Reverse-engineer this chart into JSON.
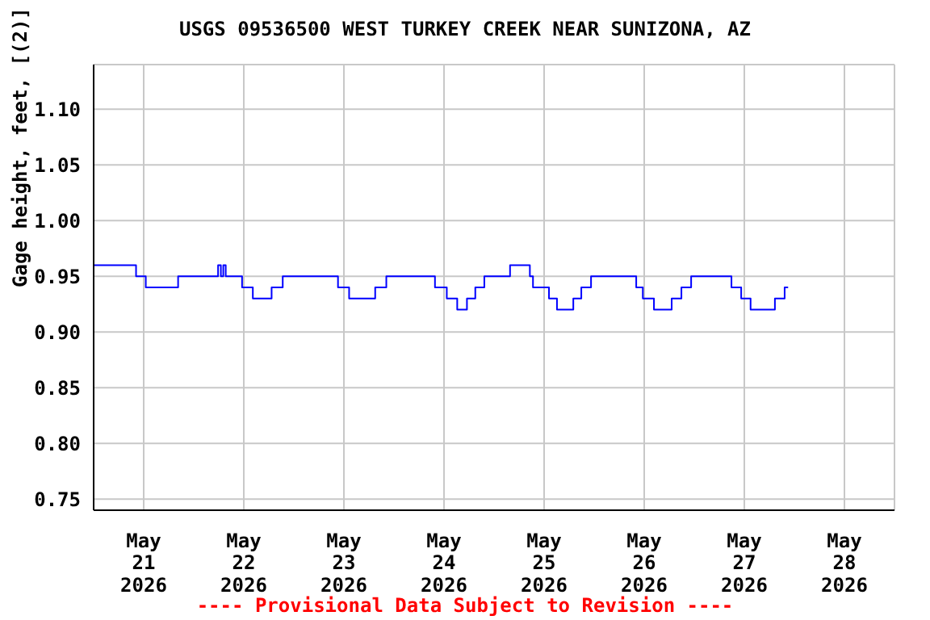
{
  "chart_data": {
    "type": "step",
    "title": "USGS 09536500 WEST TURKEY CREEK NEAR SUNIZONA, AZ",
    "ylabel": "Gage height, feet, [(2)]",
    "annotations": [
      "---- Provisional Data Subject to Revision ----"
    ],
    "x": [
      "2026-05-20T12:00",
      "2026-05-20T22:10",
      "2026-05-21T00:30",
      "2026-05-21T08:15",
      "2026-05-21T17:50",
      "2026-05-21T18:30",
      "2026-05-21T19:05",
      "2026-05-21T19:40",
      "2026-05-21T23:35",
      "2026-05-22T02:10",
      "2026-05-22T06:40",
      "2026-05-22T09:20",
      "2026-05-22T22:35",
      "2026-05-23T01:15",
      "2026-05-23T07:30",
      "2026-05-23T10:10",
      "2026-05-23T21:50",
      "2026-05-24T00:40",
      "2026-05-24T03:10",
      "2026-05-24T05:30",
      "2026-05-24T07:30",
      "2026-05-24T09:40",
      "2026-05-24T15:50",
      "2026-05-24T20:35",
      "2026-05-24T21:20",
      "2026-05-25T01:10",
      "2026-05-25T03:05",
      "2026-05-25T07:00",
      "2026-05-25T08:55",
      "2026-05-25T11:15",
      "2026-05-25T22:05",
      "2026-05-25T23:40",
      "2026-05-26T02:20",
      "2026-05-26T06:35",
      "2026-05-26T08:55",
      "2026-05-26T11:15",
      "2026-05-26T20:55",
      "2026-05-26T23:15",
      "2026-05-27T01:30",
      "2026-05-27T07:20",
      "2026-05-27T09:40",
      "2026-05-27T10:30"
    ],
    "series": [
      {
        "color": "#0000ff",
        "values": [
          0.96,
          0.95,
          0.94,
          0.95,
          0.96,
          0.95,
          0.96,
          0.95,
          0.94,
          0.93,
          0.94,
          0.95,
          0.94,
          0.93,
          0.94,
          0.95,
          0.94,
          0.93,
          0.92,
          0.93,
          0.94,
          0.95,
          0.96,
          0.95,
          0.94,
          0.93,
          0.92,
          0.93,
          0.94,
          0.95,
          0.94,
          0.93,
          0.92,
          0.93,
          0.94,
          0.95,
          0.94,
          0.93,
          0.92,
          0.93,
          0.94,
          0.94
        ]
      }
    ],
    "xlim": [
      "2026-05-20T12:00",
      "2026-05-28T12:00"
    ],
    "xticks": [
      {
        "value": "2026-05-21",
        "label": "May\n21\n2026"
      },
      {
        "value": "2026-05-22",
        "label": "May\n22\n2026"
      },
      {
        "value": "2026-05-23",
        "label": "May\n23\n2026"
      },
      {
        "value": "2026-05-24",
        "label": "May\n24\n2026"
      },
      {
        "value": "2026-05-25",
        "label": "May\n25\n2026"
      },
      {
        "value": "2026-05-26",
        "label": "May\n26\n2026"
      },
      {
        "value": "2026-05-27",
        "label": "May\n27\n2026"
      },
      {
        "value": "2026-05-28",
        "label": "May\n28\n2026"
      }
    ],
    "ylim": [
      0.74,
      1.14
    ],
    "yticks": [
      {
        "value": 0.75,
        "label": "0.75"
      },
      {
        "value": 0.8,
        "label": "0.80"
      },
      {
        "value": 0.85,
        "label": "0.85"
      },
      {
        "value": 0.9,
        "label": "0.90"
      },
      {
        "value": 0.95,
        "label": "0.95"
      },
      {
        "value": 1.0,
        "label": "1.00"
      },
      {
        "value": 1.05,
        "label": "1.05"
      },
      {
        "value": 1.1,
        "label": "1.10"
      }
    ],
    "grid": true,
    "marker": "none",
    "line_style": "solid"
  }
}
